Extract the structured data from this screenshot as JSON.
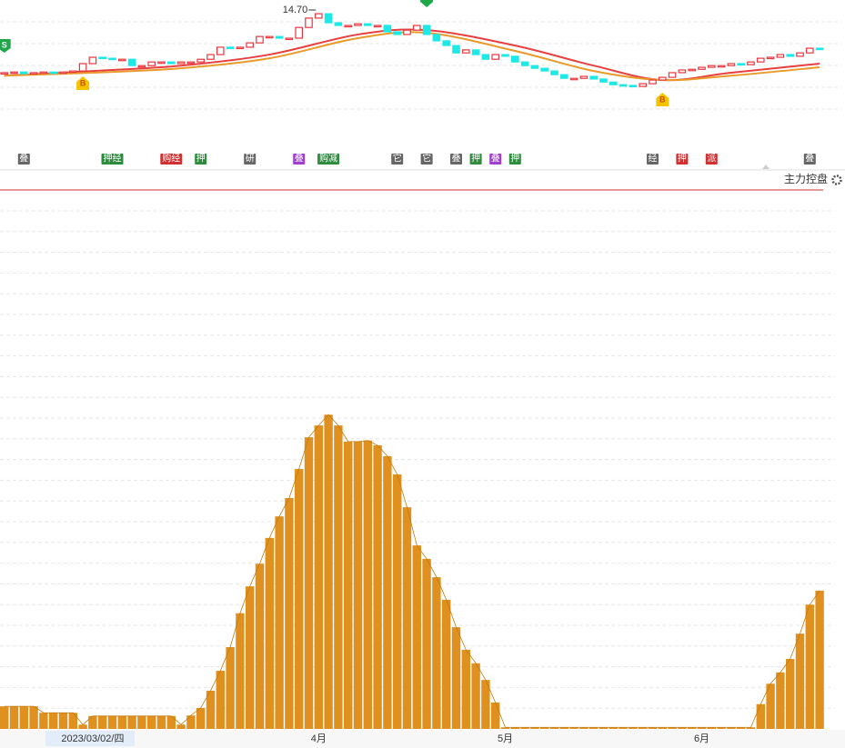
{
  "chart_data": [
    {
      "type": "candlestick",
      "open": [
        12.8,
        12.83,
        12.85,
        12.8,
        12.83,
        12.85,
        12.83,
        12.85,
        12.88,
        13.1,
        13.29,
        13.26,
        13.23,
        13.23,
        13.04,
        13.04,
        13.15,
        13.15,
        13.1,
        13.15,
        13.15,
        13.23,
        13.37,
        13.59,
        13.56,
        13.59,
        13.72,
        13.91,
        13.91,
        13.86,
        13.86,
        14.18,
        14.46,
        14.59,
        14.32,
        14.24,
        14.24,
        14.29,
        14.24,
        14.24,
        14.05,
        13.97,
        14.1,
        14.24,
        13.97,
        13.78,
        13.64,
        13.42,
        13.51,
        13.37,
        13.23,
        13.37,
        13.32,
        13.15,
        13.04,
        12.96,
        12.88,
        12.77,
        12.66,
        12.66,
        12.72,
        12.64,
        12.55,
        12.47,
        12.45,
        12.42,
        12.5,
        12.61,
        12.69,
        12.83,
        12.91,
        12.93,
        12.99,
        13.04,
        13.04,
        13.1,
        13.07,
        13.15,
        13.26,
        13.29,
        13.37,
        13.32,
        13.42,
        13.56
      ],
      "close": [
        12.83,
        12.85,
        12.8,
        12.83,
        12.85,
        12.83,
        12.85,
        12.88,
        13.1,
        13.29,
        13.26,
        13.23,
        13.23,
        13.04,
        13.04,
        13.15,
        13.15,
        13.1,
        13.15,
        13.15,
        13.23,
        13.37,
        13.59,
        13.56,
        13.59,
        13.72,
        13.91,
        13.91,
        13.86,
        13.86,
        14.18,
        14.46,
        14.59,
        14.32,
        14.24,
        14.24,
        14.29,
        14.24,
        14.24,
        14.05,
        13.97,
        14.1,
        14.24,
        13.97,
        13.78,
        13.64,
        13.42,
        13.51,
        13.37,
        13.23,
        13.37,
        13.32,
        13.15,
        13.04,
        12.96,
        12.88,
        12.77,
        12.66,
        12.66,
        12.72,
        12.64,
        12.55,
        12.47,
        12.45,
        12.42,
        12.5,
        12.61,
        12.69,
        12.83,
        12.91,
        12.93,
        12.99,
        13.04,
        13.04,
        13.1,
        13.07,
        13.15,
        13.26,
        13.29,
        13.37,
        13.32,
        13.42,
        13.56,
        13.53
      ],
      "up_color": "#e8363e",
      "down_color": "#1de9e6",
      "ylim": [
        11.2,
        15
      ],
      "ma": [
        {
          "x": [
            0,
            9,
            18,
            27,
            36,
            43,
            52,
            60,
            67,
            74,
            83
          ],
          "values": [
            12.74,
            12.88,
            13.04,
            13.37,
            13.97,
            14.1,
            13.64,
            13.04,
            12.61,
            12.83,
            13.1
          ],
          "color": "#e84040"
        },
        {
          "x": [
            0,
            9,
            18,
            27,
            36,
            43,
            52,
            60,
            67,
            74,
            83
          ],
          "values": [
            12.74,
            12.83,
            12.96,
            13.26,
            13.86,
            14.02,
            13.48,
            12.88,
            12.61,
            12.74,
            12.99
          ],
          "color": "#e89a2a"
        }
      ],
      "annotation": "14.70",
      "signals": [
        {
          "text": "S",
          "index": 0,
          "color": "#1fa84a"
        },
        {
          "text": "B",
          "index": 8,
          "color": "#f5c400"
        },
        {
          "text": "B",
          "index": 67,
          "color": "#f5c400"
        }
      ],
      "events": [
        {
          "index": 2,
          "text": "叠",
          "color": "#666"
        },
        {
          "index": 11,
          "text": "押经",
          "color": "#2e8b3e"
        },
        {
          "index": 17,
          "text": "购经",
          "color": "#d23030"
        },
        {
          "index": 20,
          "text": "押",
          "color": "#2e8b3e"
        },
        {
          "index": 25,
          "text": "研",
          "color": "#666"
        },
        {
          "index": 30,
          "text": "叠",
          "color": "#a040d0"
        },
        {
          "index": 33,
          "text": "购减",
          "color": "#2e8b3e"
        },
        {
          "index": 40,
          "text": "它",
          "color": "#666"
        },
        {
          "index": 43,
          "text": "它",
          "color": "#666"
        },
        {
          "index": 46,
          "text": "叠",
          "color": "#666"
        },
        {
          "index": 48,
          "text": "押",
          "color": "#2e8b3e"
        },
        {
          "index": 50,
          "text": "叠",
          "color": "#a040d0"
        },
        {
          "index": 52,
          "text": "押",
          "color": "#2e8b3e"
        },
        {
          "index": 66,
          "text": "经",
          "color": "#666"
        },
        {
          "index": 69,
          "text": "押",
          "color": "#d23030"
        },
        {
          "index": 72,
          "text": "派",
          "color": "#d23030"
        },
        {
          "index": 82,
          "text": "叠",
          "color": "#666"
        }
      ]
    },
    {
      "type": "bar",
      "title": "主力控盘",
      "color": "#e0901e",
      "categories": [
        null,
        null,
        null,
        null,
        null,
        null,
        null,
        null,
        null,
        "2023/03/02/四",
        null,
        null,
        null,
        null,
        null,
        null,
        null,
        null,
        null,
        null,
        null,
        null,
        null,
        null,
        null,
        null,
        null,
        null,
        null,
        null,
        null,
        null,
        "4月",
        null,
        null,
        null,
        null,
        null,
        null,
        null,
        null,
        null,
        null,
        null,
        null,
        null,
        null,
        null,
        null,
        null,
        null,
        "5月",
        null,
        null,
        null,
        null,
        null,
        null,
        null,
        null,
        null,
        null,
        null,
        null,
        null,
        null,
        null,
        null,
        null,
        null,
        null,
        "6月",
        null,
        null,
        null,
        null,
        null,
        null,
        null,
        null,
        null,
        null,
        null,
        null
      ],
      "values": [
        4.2,
        4.2,
        4.2,
        4.2,
        3.0,
        3.0,
        3.0,
        3.0,
        0.8,
        2.4,
        2.4,
        2.4,
        2.4,
        2.4,
        2.4,
        2.4,
        2.4,
        2.4,
        0.8,
        2.5,
        3.9,
        7.1,
        10.8,
        15.2,
        21.5,
        26.5,
        30.7,
        35.5,
        39.5,
        42.9,
        48.3,
        54.2,
        56.4,
        58.4,
        56.4,
        53.4,
        53.4,
        53.6,
        52.7,
        50.7,
        47.3,
        41.2,
        34.1,
        31.6,
        28.2,
        24.0,
        18.9,
        14.7,
        12.2,
        9.1,
        4.9,
        0.3,
        0.3,
        0.3,
        0.3,
        0.3,
        0.3,
        0.3,
        0.3,
        0.3,
        0.3,
        0.3,
        0.3,
        0.3,
        0.3,
        0.3,
        0.3,
        0.3,
        0.3,
        0.3,
        0.3,
        0.3,
        0.3,
        0.3,
        0.3,
        0.3,
        0.3,
        4.6,
        8.4,
        10.5,
        13.0,
        17.7,
        23.1,
        25.7
      ],
      "ylim": [
        0,
        100
      ]
    }
  ]
}
